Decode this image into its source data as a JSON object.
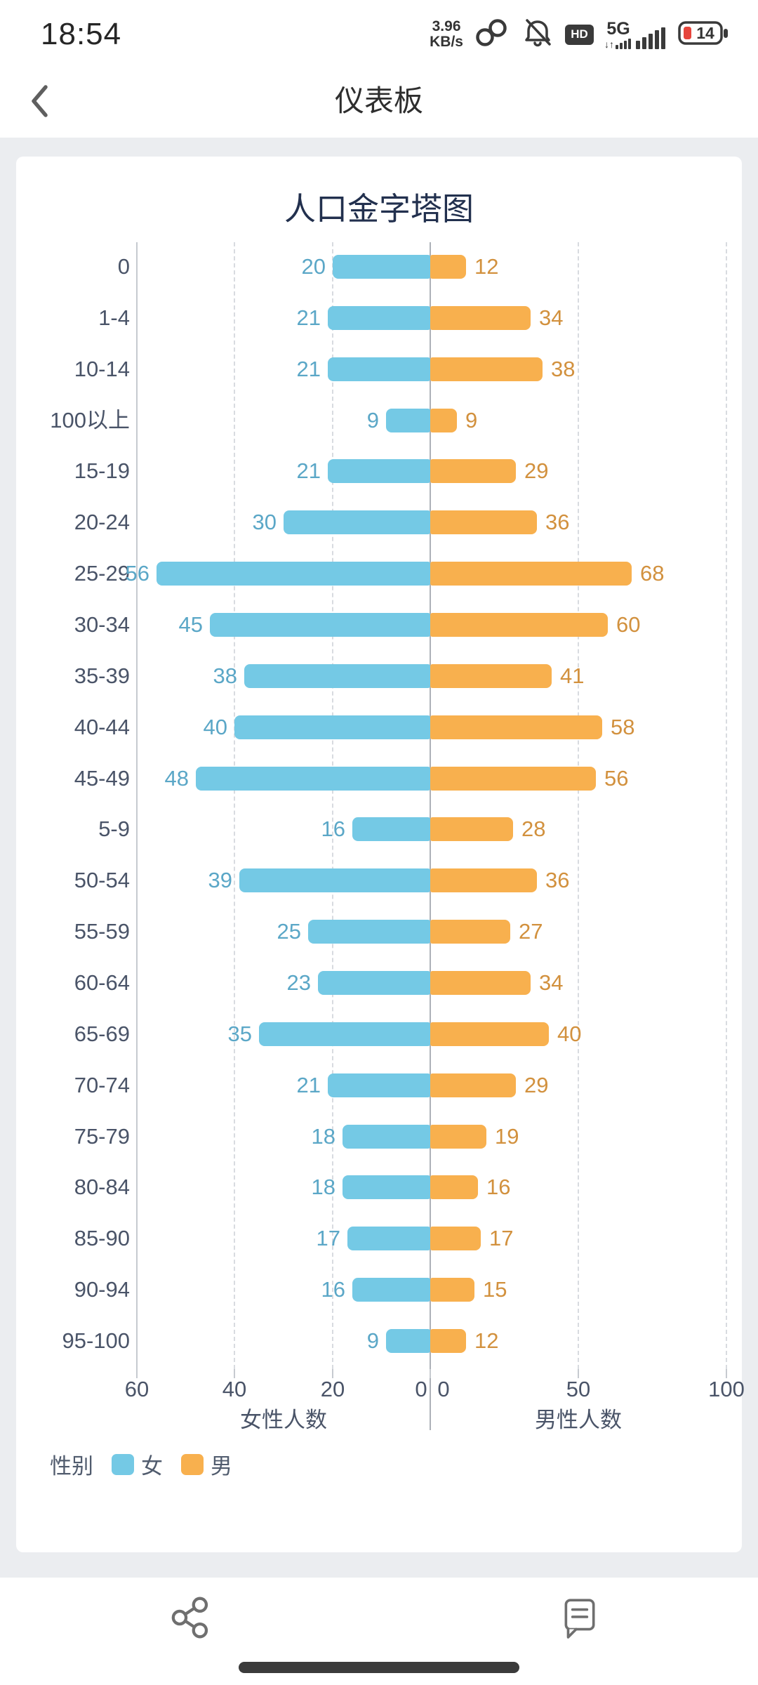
{
  "status_bar": {
    "time": "18:54",
    "net_speed_value": "3.96",
    "net_speed_unit": "KB/s",
    "icons": [
      "link-icon",
      "bell-muted-icon",
      "hd-badge",
      "signal-5g-icon",
      "battery-icon"
    ],
    "hd_label": "HD",
    "network_type": "5G",
    "battery_percent": "14"
  },
  "header": {
    "back_icon": "chevron-left",
    "title": "仪表板"
  },
  "chart_data": {
    "type": "bar",
    "subtype": "population-pyramid",
    "title": "人口金字塔图",
    "grid": true,
    "categories": [
      "0",
      "1-4",
      "10-14",
      "100以上",
      "15-19",
      "20-24",
      "25-29",
      "30-34",
      "35-39",
      "40-44",
      "45-49",
      "5-9",
      "50-54",
      "55-59",
      "60-64",
      "65-69",
      "70-74",
      "75-79",
      "80-84",
      "85-90",
      "90-94",
      "95-100"
    ],
    "series": [
      {
        "name": "女",
        "side": "left",
        "color": "#74c9e5",
        "label_color": "#5ba7c7",
        "axis_label": "女性人数",
        "axis_max": 60,
        "axis_ticks": [
          60,
          40,
          20,
          0
        ],
        "values": [
          20,
          21,
          21,
          9,
          21,
          30,
          56,
          45,
          38,
          40,
          48,
          16,
          39,
          25,
          23,
          35,
          21,
          18,
          18,
          17,
          16,
          9
        ]
      },
      {
        "name": "男",
        "side": "right",
        "color": "#f8b04e",
        "label_color": "#d2913e",
        "axis_label": "男性人数",
        "axis_max": 100,
        "axis_ticks": [
          0,
          50,
          100
        ],
        "values": [
          12,
          34,
          38,
          9,
          29,
          36,
          68,
          60,
          41,
          58,
          56,
          28,
          36,
          27,
          34,
          40,
          29,
          19,
          16,
          17,
          15,
          12
        ]
      }
    ],
    "legend": {
      "title": "性别",
      "items": [
        "女",
        "男"
      ],
      "position": "bottom-left"
    }
  },
  "colors": {
    "page_bg": "#ebedf0",
    "card_bg": "#ffffff",
    "title_text": "#22304e",
    "axis_text": "#4a5468",
    "grid_dash": "#d8dbe0",
    "grid_edge": "#c6cad0",
    "grid_center": "#acb1b8",
    "battery_alert": "#e6453c"
  },
  "footer": {
    "icons": [
      "share-icon",
      "comment-icon"
    ]
  }
}
